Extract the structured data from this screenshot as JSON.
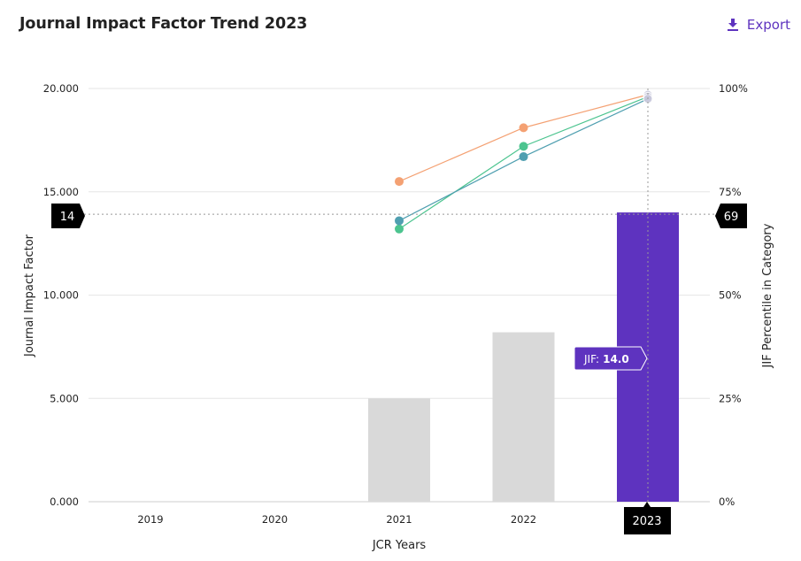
{
  "header": {
    "title": "Journal Impact Factor Trend 2023",
    "export_label": "Export",
    "export_icon": "download-icon"
  },
  "colors": {
    "accent": "#5e33bf",
    "bar_default": "#d9d9d9",
    "bar_highlight": "#5e33bf",
    "series_orange": "#f4a173",
    "series_green": "#4cc48f",
    "series_teal": "#4f9fb0",
    "marker_bg": "#000000"
  },
  "chart_data": {
    "type": "bar",
    "categories": [
      "2019",
      "2020",
      "2021",
      "2022",
      "2023"
    ],
    "xlabel": "JCR Years",
    "ylabel": "Journal Impact Factor",
    "ylabel_right": "JIF Percentile in Category",
    "ylim": [
      0,
      20
    ],
    "yticks": [
      "0.000",
      "5.000",
      "10.000",
      "15.000",
      "20.000"
    ],
    "ylim_right": [
      0,
      100
    ],
    "yticks_right": [
      "0%",
      "25%",
      "50%",
      "75%",
      "100%"
    ],
    "grid": true,
    "bars": {
      "values": [
        null,
        null,
        5.0,
        8.2,
        14.0
      ],
      "highlight_index": 4
    },
    "percentile_series": [
      {
        "color_key": "series_orange",
        "values": [
          null,
          null,
          77.5,
          90.5,
          98.5
        ]
      },
      {
        "color_key": "series_green",
        "values": [
          null,
          null,
          66.0,
          86.0,
          98.0
        ]
      },
      {
        "color_key": "series_teal",
        "values": [
          null,
          null,
          68.0,
          83.5,
          97.5
        ]
      }
    ],
    "crosshair": {
      "category": "2023",
      "left_value": "14",
      "right_value": "69",
      "tooltip_label": "JIF:",
      "tooltip_value": "14.0"
    }
  }
}
